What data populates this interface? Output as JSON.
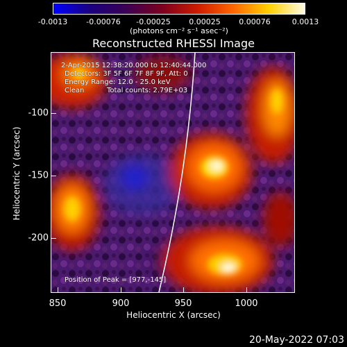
{
  "colorbar": {
    "ticks": [
      "-0.0013",
      "-0.00076",
      "-0.00025",
      "0.00025",
      "0.00076",
      "0.0013"
    ],
    "unit": "(photons cm⁻² s⁻¹ asec⁻²)",
    "gradient": [
      "#0000ff",
      "#1a0080",
      "#3a0055",
      "#7a0020",
      "#cc1a00",
      "#ff6600",
      "#ffd000",
      "#fffbe6"
    ]
  },
  "title": "Reconstructed RHESSI Image",
  "annotations": {
    "time_range": "2-Apr-2015 12:38:20.000 to 12:40:44.000",
    "detectors": "Detectors: 3F 5F 6F 7F 8F 9F, Att: 0",
    "energy": "Energy Range: 12.0 - 25.0 keV",
    "clean": "Clean",
    "counts": "Total counts: 2.79E+03",
    "peak": "Position of Peak = [977,-145]"
  },
  "axes": {
    "xlabel": "Heliocentric X (arcsec)",
    "ylabel": "Heliocentric Y (arcsec)",
    "xticks": [
      "850",
      "900",
      "950",
      "1000"
    ],
    "yticks": [
      "-100",
      "-150",
      "-200"
    ]
  },
  "timestamp": "20-May-2022 07:03"
}
